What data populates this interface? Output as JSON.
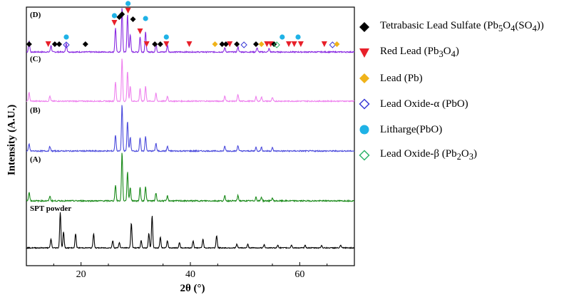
{
  "chart_data": {
    "type": "line",
    "xlabel": "2θ (°)",
    "ylabel": "Intensity (A.U.)",
    "xlim": [
      10,
      70
    ],
    "xticks": [
      "20",
      "40",
      "60"
    ],
    "panel_labels": [
      "(D)",
      "(C)",
      "(B)",
      "(A)",
      "SPT powder"
    ],
    "series": [
      {
        "label": "(D)",
        "color": "#8a2be2",
        "peaks": [
          [
            10.5,
            0.25
          ],
          [
            14.5,
            0.15
          ],
          [
            17.3,
            0.2
          ],
          [
            26.3,
            0.55
          ],
          [
            27.5,
            1.0
          ],
          [
            28.5,
            0.85
          ],
          [
            29.0,
            0.4
          ],
          [
            30.8,
            0.35
          ],
          [
            31.8,
            0.45
          ],
          [
            33.7,
            0.2
          ],
          [
            35.8,
            0.15
          ],
          [
            46.3,
            0.1
          ],
          [
            48.7,
            0.12
          ],
          [
            52.2,
            0.1
          ],
          [
            54.4,
            0.08
          ]
        ]
      },
      {
        "label": "(C)",
        "color": "#ee82ee",
        "peaks": [
          [
            10.5,
            0.2
          ],
          [
            14.3,
            0.12
          ],
          [
            26.3,
            0.45
          ],
          [
            27.5,
            1.0
          ],
          [
            28.5,
            0.7
          ],
          [
            29.0,
            0.35
          ],
          [
            30.8,
            0.3
          ],
          [
            31.8,
            0.35
          ],
          [
            33.7,
            0.18
          ],
          [
            35.8,
            0.12
          ],
          [
            46.3,
            0.12
          ],
          [
            48.7,
            0.15
          ],
          [
            52.0,
            0.1
          ],
          [
            53.0,
            0.1
          ],
          [
            55.0,
            0.08
          ]
        ]
      },
      {
        "label": "(B)",
        "color": "#4b4bdc",
        "peaks": [
          [
            10.5,
            0.15
          ],
          [
            14.3,
            0.1
          ],
          [
            26.3,
            0.35
          ],
          [
            27.5,
            1.0
          ],
          [
            28.5,
            0.65
          ],
          [
            29.0,
            0.3
          ],
          [
            30.8,
            0.28
          ],
          [
            31.8,
            0.32
          ],
          [
            33.7,
            0.17
          ],
          [
            35.8,
            0.1
          ],
          [
            46.3,
            0.1
          ],
          [
            48.7,
            0.12
          ],
          [
            52.0,
            0.08
          ],
          [
            53.0,
            0.08
          ],
          [
            55.0,
            0.07
          ]
        ]
      },
      {
        "label": "(A)",
        "color": "#1a8a1a",
        "peaks": [
          [
            10.5,
            0.18
          ],
          [
            14.3,
            0.1
          ],
          [
            26.3,
            0.33
          ],
          [
            27.5,
            1.0
          ],
          [
            28.5,
            0.6
          ],
          [
            29.0,
            0.28
          ],
          [
            30.8,
            0.27
          ],
          [
            31.8,
            0.3
          ],
          [
            33.7,
            0.16
          ],
          [
            35.8,
            0.1
          ],
          [
            46.3,
            0.1
          ],
          [
            48.7,
            0.11
          ],
          [
            52.0,
            0.08
          ],
          [
            53.0,
            0.08
          ],
          [
            55.0,
            0.06
          ]
        ]
      },
      {
        "label": "SPT powder",
        "color": "#000000",
        "peaks": [
          [
            14.5,
            0.25
          ],
          [
            16.2,
            1.0
          ],
          [
            16.8,
            0.45
          ],
          [
            19.0,
            0.4
          ],
          [
            22.3,
            0.4
          ],
          [
            25.8,
            0.2
          ],
          [
            27.0,
            0.15
          ],
          [
            29.2,
            0.7
          ],
          [
            31.0,
            0.2
          ],
          [
            32.4,
            0.4
          ],
          [
            33.0,
            0.9
          ],
          [
            34.5,
            0.3
          ],
          [
            35.8,
            0.2
          ],
          [
            38.0,
            0.15
          ],
          [
            40.5,
            0.2
          ],
          [
            42.3,
            0.25
          ],
          [
            44.8,
            0.35
          ],
          [
            48.5,
            0.1
          ],
          [
            50.5,
            0.1
          ],
          [
            53.5,
            0.1
          ],
          [
            56.0,
            0.08
          ],
          [
            58.5,
            0.08
          ],
          [
            61.0,
            0.07
          ],
          [
            64.0,
            0.07
          ],
          [
            67.5,
            0.07
          ]
        ]
      }
    ],
    "legend": [
      {
        "text": "Tetrabasic Lead Sulfate (Pb5O4(SO4))",
        "marker": "diamond-filled",
        "color": "#000000"
      },
      {
        "text": "Red Lead (Pb3O4)",
        "marker": "triangle-down-filled",
        "color": "#e8202a"
      },
      {
        "text": "Lead (Pb)",
        "marker": "diamond-filled",
        "color": "#f0b31a"
      },
      {
        "text": "Lead Oxide-α (PbO)",
        "marker": "diamond-open",
        "color": "#3a3ad6"
      },
      {
        "text": "Litharge(PbO)",
        "marker": "circle-filled",
        "color": "#1fb2e6"
      },
      {
        "text": "Lead Oxide-β (Pb2O3)",
        "marker": "diamond-open",
        "color": "#2db36a"
      }
    ],
    "markers_on_D": [
      {
        "x": 10.5,
        "type": "diamond-filled",
        "color": "#000000"
      },
      {
        "x": 14.0,
        "type": "triangle-down-filled",
        "color": "#e8202a"
      },
      {
        "x": 15.2,
        "type": "diamond-filled",
        "color": "#000000"
      },
      {
        "x": 16.0,
        "type": "diamond-filled",
        "color": "#000000"
      },
      {
        "x": 17.3,
        "type": "circle-filled",
        "color": "#1fb2e6"
      },
      {
        "x": 17.3,
        "type": "diamond-open",
        "color": "#3a3ad6"
      },
      {
        "x": 20.8,
        "type": "diamond-filled",
        "color": "#000000"
      },
      {
        "x": 26.1,
        "type": "circle-filled",
        "color": "#1fb2e6"
      },
      {
        "x": 26.1,
        "type": "triangle-down-filled",
        "color": "#e8202a"
      },
      {
        "x": 27.5,
        "type": "diamond-filled",
        "color": "#000000"
      },
      {
        "x": 27.0,
        "type": "diamond-filled",
        "color": "#000000"
      },
      {
        "x": 28.6,
        "type": "circle-filled",
        "color": "#1fb2e6"
      },
      {
        "x": 28.6,
        "type": "triangle-down-filled",
        "color": "#e8202a"
      },
      {
        "x": 29.5,
        "type": "diamond-filled",
        "color": "#000000"
      },
      {
        "x": 30.8,
        "type": "triangle-down-filled",
        "color": "#e8202a"
      },
      {
        "x": 31.8,
        "type": "circle-filled",
        "color": "#1fb2e6"
      },
      {
        "x": 32.0,
        "type": "triangle-down-filled",
        "color": "#e8202a"
      },
      {
        "x": 33.5,
        "type": "diamond-filled",
        "color": "#000000"
      },
      {
        "x": 34.5,
        "type": "diamond-filled",
        "color": "#000000"
      },
      {
        "x": 35.6,
        "type": "circle-filled",
        "color": "#1fb2e6"
      },
      {
        "x": 35.6,
        "type": "triangle-down-filled",
        "color": "#e8202a"
      },
      {
        "x": 39.8,
        "type": "triangle-down-filled",
        "color": "#e8202a"
      },
      {
        "x": 44.5,
        "type": "diamond-filled",
        "color": "#f0b31a"
      },
      {
        "x": 45.8,
        "type": "diamond-filled",
        "color": "#000000"
      },
      {
        "x": 46.5,
        "type": "diamond-filled",
        "color": "#000000"
      },
      {
        "x": 47.2,
        "type": "triangle-down-filled",
        "color": "#e8202a"
      },
      {
        "x": 48.5,
        "type": "diamond-filled",
        "color": "#000000"
      },
      {
        "x": 49.8,
        "type": "diamond-open",
        "color": "#3a3ad6"
      },
      {
        "x": 52.0,
        "type": "diamond-filled",
        "color": "#000000"
      },
      {
        "x": 53.0,
        "type": "diamond-filled",
        "color": "#f0b31a"
      },
      {
        "x": 54.0,
        "type": "triangle-down-filled",
        "color": "#e8202a"
      },
      {
        "x": 54.7,
        "type": "triangle-down-filled",
        "color": "#e8202a"
      },
      {
        "x": 55.3,
        "type": "diamond-filled",
        "color": "#000000"
      },
      {
        "x": 55.8,
        "type": "diamond-open",
        "color": "#2db36a"
      },
      {
        "x": 56.8,
        "type": "circle-filled",
        "color": "#1fb2e6"
      },
      {
        "x": 58.0,
        "type": "triangle-down-filled",
        "color": "#e8202a"
      },
      {
        "x": 59.0,
        "type": "triangle-down-filled",
        "color": "#e8202a"
      },
      {
        "x": 59.7,
        "type": "circle-filled",
        "color": "#1fb2e6"
      },
      {
        "x": 60.2,
        "type": "triangle-down-filled",
        "color": "#e8202a"
      },
      {
        "x": 64.5,
        "type": "triangle-down-filled",
        "color": "#e8202a"
      },
      {
        "x": 66.0,
        "type": "diamond-open",
        "color": "#3a3ad6"
      },
      {
        "x": 66.8,
        "type": "diamond-filled",
        "color": "#f0b31a"
      }
    ]
  }
}
